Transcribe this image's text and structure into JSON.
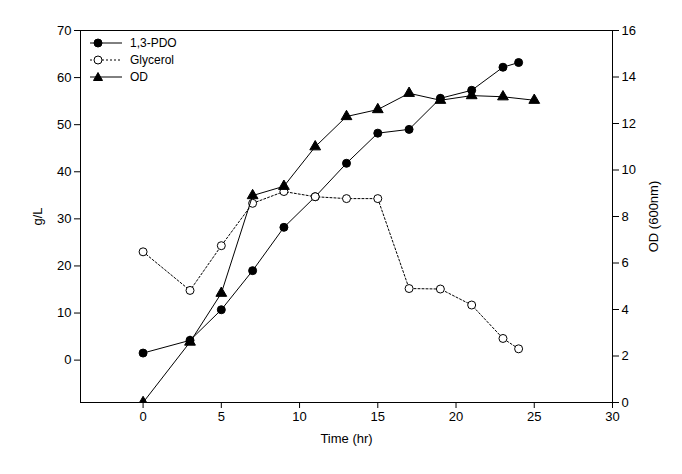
{
  "chart_data": {
    "type": "line",
    "x_label": "Time (hr)",
    "y_label": "g/L",
    "y2_label": "OD (600nm)",
    "xlim": [
      -4,
      30
    ],
    "xticks": [
      0,
      5,
      10,
      15,
      20,
      25,
      30
    ],
    "ylim": [
      -9,
      70
    ],
    "yticks": [
      0,
      10,
      20,
      30,
      40,
      50,
      60,
      70
    ],
    "y2lim": [
      0,
      16
    ],
    "y2ticks": [
      0,
      2,
      4,
      6,
      8,
      10,
      12,
      14,
      16
    ],
    "grid": false,
    "legend": "top-left",
    "series": [
      {
        "name": "1,3-PDO",
        "color": "#000000",
        "marker": "circle",
        "line_style": "solid",
        "x": [
          0,
          3,
          5,
          7,
          9,
          11,
          13,
          15,
          17,
          19,
          21,
          23,
          24
        ],
        "values": [
          1.5,
          4.2,
          10.7,
          19,
          28.2,
          34.7,
          41.8,
          48.2,
          49,
          55.6,
          57.3,
          62.2,
          63.2
        ]
      },
      {
        "name": "Glycerol",
        "color": "#000000",
        "marker": "open_circle",
        "line_style": "dotted",
        "x": [
          0,
          3,
          5,
          7,
          9,
          11,
          13,
          15,
          17,
          19,
          21,
          23,
          24
        ],
        "values": [
          23,
          14.8,
          24.3,
          33.3,
          35.8,
          34.7,
          34.3,
          34.3,
          15.2,
          15.1,
          11.7,
          4.6,
          2.4
        ]
      },
      {
        "name": "OD",
        "color": "#000000",
        "marker": "triangle",
        "line_style": "solid",
        "axis": "y2",
        "x": [
          0,
          3,
          5,
          7,
          9,
          11,
          13,
          15,
          17,
          19,
          21,
          23,
          25
        ],
        "values": [
          0,
          2.6,
          4.7,
          8.9,
          9.3,
          11.0,
          12.3,
          12.6,
          13.3,
          13.0,
          13.2,
          13.15,
          13.0
        ]
      }
    ]
  }
}
